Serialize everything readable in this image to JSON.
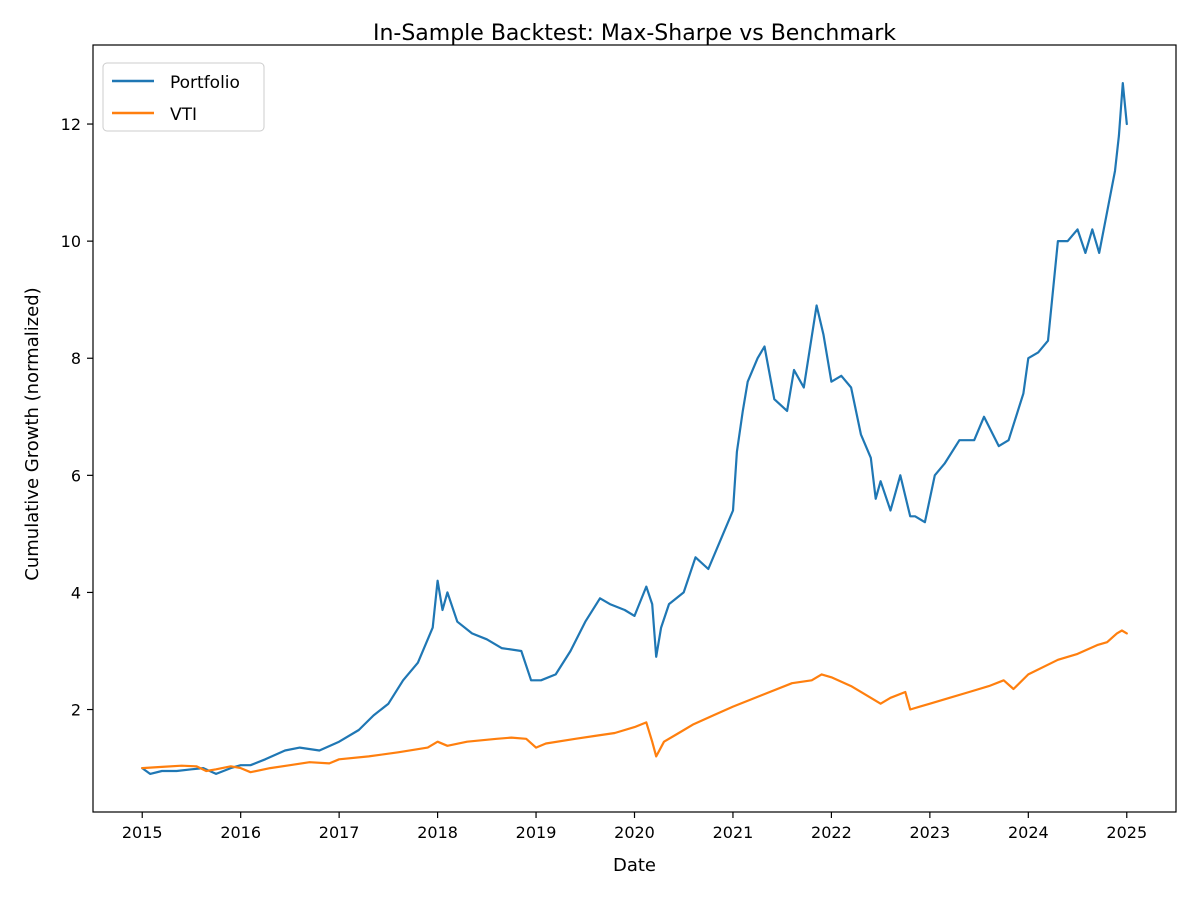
{
  "chart_data": {
    "type": "line",
    "title": "In-Sample Backtest: Max-Sharpe vs Benchmark",
    "xlabel": "Date",
    "ylabel": "Cumulative Growth (normalized)",
    "xlim": [
      2014.5,
      2025.5
    ],
    "ylim": [
      0.25,
      13.35
    ],
    "x_ticks": [
      2015,
      2016,
      2017,
      2018,
      2019,
      2020,
      2021,
      2022,
      2023,
      2024,
      2025
    ],
    "x_tick_labels": [
      "2015",
      "2016",
      "2017",
      "2018",
      "2019",
      "2020",
      "2021",
      "2022",
      "2023",
      "2024",
      "2025"
    ],
    "y_ticks": [
      2,
      4,
      6,
      8,
      10,
      12
    ],
    "y_tick_labels": [
      "2",
      "4",
      "6",
      "8",
      "10",
      "12"
    ],
    "grid": false,
    "legend_position": "top-left",
    "series": [
      {
        "name": "Portfolio",
        "color": "#1f77b4",
        "x": [
          2015.0,
          2015.08,
          2015.2,
          2015.35,
          2015.5,
          2015.62,
          2015.75,
          2015.9,
          2016.0,
          2016.1,
          2016.25,
          2016.45,
          2016.6,
          2016.8,
          2017.0,
          2017.2,
          2017.35,
          2017.5,
          2017.65,
          2017.8,
          2017.95,
          2018.0,
          2018.05,
          2018.1,
          2018.2,
          2018.35,
          2018.5,
          2018.65,
          2018.85,
          2018.95,
          2019.05,
          2019.2,
          2019.35,
          2019.5,
          2019.65,
          2019.75,
          2019.9,
          2020.0,
          2020.12,
          2020.18,
          2020.22,
          2020.27,
          2020.35,
          2020.5,
          2020.62,
          2020.75,
          2020.9,
          2021.0,
          2021.04,
          2021.1,
          2021.15,
          2021.25,
          2021.32,
          2021.42,
          2021.55,
          2021.62,
          2021.72,
          2021.85,
          2021.92,
          2022.0,
          2022.1,
          2022.2,
          2022.3,
          2022.4,
          2022.45,
          2022.5,
          2022.6,
          2022.7,
          2022.8,
          2022.85,
          2022.95,
          2023.05,
          2023.15,
          2023.3,
          2023.45,
          2023.55,
          2023.7,
          2023.8,
          2023.95,
          2024.0,
          2024.1,
          2024.2,
          2024.3,
          2024.4,
          2024.5,
          2024.58,
          2024.65,
          2024.72,
          2024.8,
          2024.88,
          2024.92,
          2024.96,
          2025.0
        ],
        "values": [
          1.0,
          0.9,
          0.95,
          0.95,
          0.98,
          1.0,
          0.9,
          1.0,
          1.05,
          1.05,
          1.15,
          1.3,
          1.35,
          1.3,
          1.45,
          1.65,
          1.9,
          2.1,
          2.5,
          2.8,
          3.4,
          4.2,
          3.7,
          4.0,
          3.5,
          3.3,
          3.2,
          3.05,
          3.0,
          2.5,
          2.5,
          2.6,
          3.0,
          3.5,
          3.9,
          3.8,
          3.7,
          3.6,
          4.1,
          3.8,
          2.9,
          3.4,
          3.8,
          4.0,
          4.6,
          4.4,
          5.0,
          5.4,
          6.4,
          7.1,
          7.6,
          8.0,
          8.2,
          7.3,
          7.1,
          7.8,
          7.5,
          8.9,
          8.4,
          7.6,
          7.7,
          7.5,
          6.7,
          6.3,
          5.6,
          5.9,
          5.4,
          6.0,
          5.3,
          5.3,
          5.2,
          6.0,
          6.2,
          6.6,
          6.6,
          7.0,
          6.5,
          6.6,
          7.4,
          8.0,
          8.1,
          8.3,
          10.0,
          10.0,
          10.2,
          9.8,
          10.2,
          9.8,
          10.5,
          11.2,
          11.8,
          12.7,
          12.0
        ]
      },
      {
        "name": "VTI",
        "color": "#ff7f0e",
        "x": [
          2015.0,
          2015.2,
          2015.4,
          2015.55,
          2015.65,
          2015.75,
          2015.9,
          2016.0,
          2016.1,
          2016.3,
          2016.5,
          2016.7,
          2016.9,
          2017.0,
          2017.3,
          2017.6,
          2017.9,
          2018.0,
          2018.1,
          2018.3,
          2018.6,
          2018.75,
          2018.9,
          2019.0,
          2019.1,
          2019.4,
          2019.6,
          2019.8,
          2020.0,
          2020.12,
          2020.18,
          2020.22,
          2020.3,
          2020.45,
          2020.6,
          2020.8,
          2021.0,
          2021.3,
          2021.6,
          2021.8,
          2021.9,
          2022.0,
          2022.2,
          2022.4,
          2022.5,
          2022.6,
          2022.75,
          2022.8,
          2022.9,
          2023.0,
          2023.2,
          2023.4,
          2023.6,
          2023.75,
          2023.85,
          2024.0,
          2024.3,
          2024.5,
          2024.7,
          2024.8,
          2024.9,
          2024.95,
          2025.0
        ],
        "values": [
          1.0,
          1.02,
          1.04,
          1.03,
          0.95,
          0.98,
          1.03,
          1.0,
          0.93,
          1.0,
          1.05,
          1.1,
          1.08,
          1.15,
          1.2,
          1.27,
          1.35,
          1.45,
          1.38,
          1.45,
          1.5,
          1.52,
          1.5,
          1.35,
          1.42,
          1.5,
          1.55,
          1.6,
          1.7,
          1.78,
          1.45,
          1.2,
          1.45,
          1.6,
          1.75,
          1.9,
          2.05,
          2.25,
          2.45,
          2.5,
          2.6,
          2.55,
          2.4,
          2.2,
          2.1,
          2.2,
          2.3,
          2.0,
          2.05,
          2.1,
          2.2,
          2.3,
          2.4,
          2.5,
          2.35,
          2.6,
          2.85,
          2.95,
          3.1,
          3.15,
          3.3,
          3.35,
          3.3
        ]
      }
    ]
  }
}
